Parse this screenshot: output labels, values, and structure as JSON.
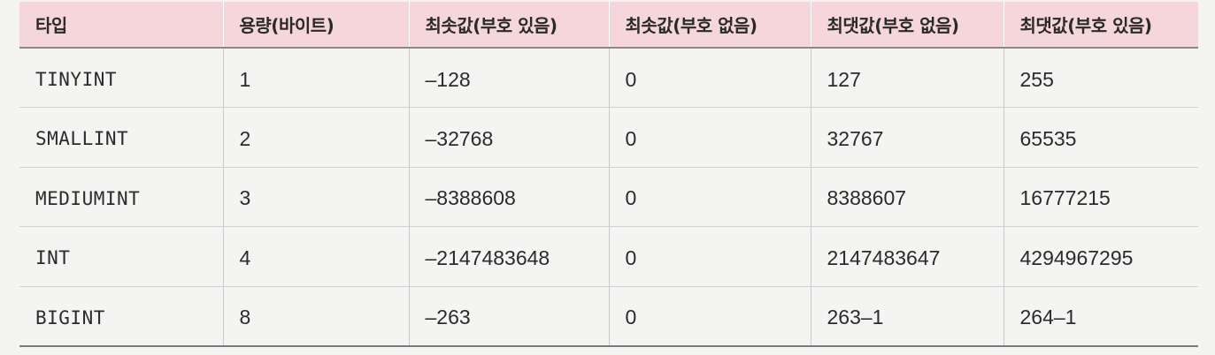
{
  "table": {
    "headers": [
      "타입",
      "용량(바이트)",
      "최솟값(부호 있음)",
      "최솟값(부호 없음)",
      "최댓값(부호 없음)",
      "최댓값(부호 있음)"
    ],
    "rows": [
      [
        "TINYINT",
        "1",
        "–128",
        "0",
        "127",
        "255"
      ],
      [
        "SMALLINT",
        "2",
        "–32768",
        "0",
        "32767",
        "65535"
      ],
      [
        "MEDIUMINT",
        "3",
        "–8388608",
        "0",
        "8388607",
        "16777215"
      ],
      [
        "INT",
        "4",
        "–2147483648",
        "0",
        "2147483647",
        "4294967295"
      ],
      [
        "BIGINT",
        "8",
        "–263",
        "0",
        "263–1",
        "264–1"
      ]
    ]
  },
  "colors": {
    "header_bg": "#f5d6da",
    "page_bg": "#f4f4f3",
    "text": "#2b2b2b"
  }
}
